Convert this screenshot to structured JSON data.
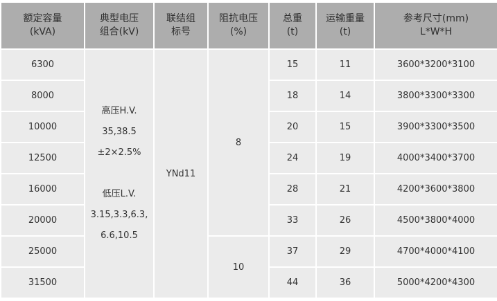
{
  "headers": [
    [
      "额定容量",
      "(kVA)"
    ],
    [
      "典型电压",
      "组合(kV)"
    ],
    [
      "联结组",
      "标号"
    ],
    [
      "阻抗电压",
      "(%)"
    ],
    [
      "总重",
      "(t)"
    ],
    [
      "运输重量",
      "(t)"
    ],
    [
      "参考尺寸(mm)",
      "L*W*H"
    ]
  ],
  "voltage": {
    "hv_label": "高压H.V.",
    "hv_values": "35,38.5",
    "hv_tap": "±2×2.5%",
    "lv_label": "低压L.V.",
    "lv_values_1": "3.15,3.3,6.3,",
    "lv_values_2": "6.6,10.5"
  },
  "vector_group": "YNd11",
  "impedance": [
    "8",
    "10"
  ],
  "rows": [
    {
      "capacity": "6300",
      "total": "15",
      "transport": "11",
      "size": "3600*3200*3100"
    },
    {
      "capacity": "8000",
      "total": "18",
      "transport": "14",
      "size": "3800*3300*3300"
    },
    {
      "capacity": "10000",
      "total": "20",
      "transport": "15",
      "size": "3900*3300*3500"
    },
    {
      "capacity": "12500",
      "total": "24",
      "transport": "19",
      "size": "4000*3400*3700"
    },
    {
      "capacity": "16000",
      "total": "28",
      "transport": "21",
      "size": "4200*3600*3800"
    },
    {
      "capacity": "20000",
      "total": "33",
      "transport": "26",
      "size": "4500*3800*4000"
    },
    {
      "capacity": "25000",
      "total": "37",
      "transport": "29",
      "size": "4700*4000*4100"
    },
    {
      "capacity": "31500",
      "total": "44",
      "transport": "36",
      "size": "5000*4200*4300"
    }
  ]
}
